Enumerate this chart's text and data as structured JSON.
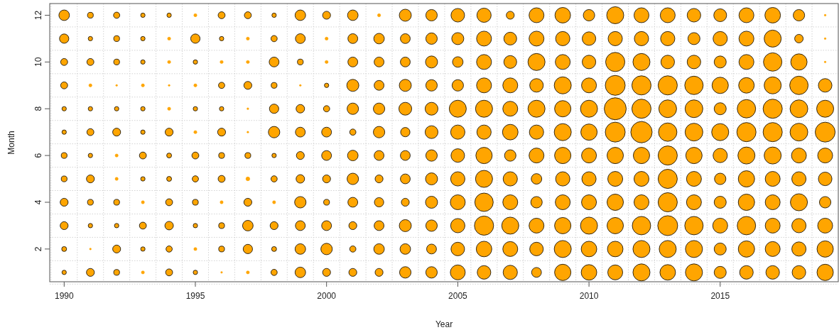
{
  "chart_data": {
    "type": "bubble",
    "xlabel": "Year",
    "ylabel": "Month",
    "xlim": [
      1989.45,
      2019.5
    ],
    "ylim": [
      0.6,
      12.5
    ],
    "xticks": [
      1990,
      1995,
      2000,
      2005,
      2010,
      2015
    ],
    "yticks": [
      2,
      4,
      6,
      8,
      10,
      12
    ],
    "grid": true,
    "marker": "circle",
    "series": [
      {
        "color": "#ffa500",
        "x": [
          1990,
          1990,
          1990,
          1990,
          1990,
          1990,
          1990,
          1990,
          1990,
          1990,
          1990,
          1990,
          1991,
          1991,
          1991,
          1991,
          1991,
          1991,
          1991,
          1991,
          1991,
          1991,
          1991,
          1991,
          1992,
          1992,
          1992,
          1992,
          1992,
          1992,
          1992,
          1992,
          1992,
          1992,
          1992,
          1992,
          1993,
          1993,
          1993,
          1993,
          1993,
          1993,
          1993,
          1993,
          1993,
          1993,
          1993,
          1993,
          1994,
          1994,
          1994,
          1994,
          1994,
          1994,
          1994,
          1994,
          1994,
          1994,
          1994,
          1994,
          1995,
          1995,
          1995,
          1995,
          1995,
          1995,
          1995,
          1995,
          1995,
          1995,
          1995,
          1995,
          1996,
          1996,
          1996,
          1996,
          1996,
          1996,
          1996,
          1996,
          1996,
          1996,
          1996,
          1996,
          1997,
          1997,
          1997,
          1997,
          1997,
          1997,
          1997,
          1997,
          1997,
          1997,
          1997,
          1997,
          1998,
          1998,
          1998,
          1998,
          1998,
          1998,
          1998,
          1998,
          1998,
          1998,
          1998,
          1998,
          1999,
          1999,
          1999,
          1999,
          1999,
          1999,
          1999,
          1999,
          1999,
          1999,
          1999,
          1999,
          2000,
          2000,
          2000,
          2000,
          2000,
          2000,
          2000,
          2000,
          2000,
          2000,
          2000,
          2000,
          2001,
          2001,
          2001,
          2001,
          2001,
          2001,
          2001,
          2001,
          2001,
          2001,
          2001,
          2001,
          2002,
          2002,
          2002,
          2002,
          2002,
          2002,
          2002,
          2002,
          2002,
          2002,
          2002,
          2002,
          2003,
          2003,
          2003,
          2003,
          2003,
          2003,
          2003,
          2003,
          2003,
          2003,
          2003,
          2003,
          2004,
          2004,
          2004,
          2004,
          2004,
          2004,
          2004,
          2004,
          2004,
          2004,
          2004,
          2004,
          2005,
          2005,
          2005,
          2005,
          2005,
          2005,
          2005,
          2005,
          2005,
          2005,
          2005,
          2005,
          2006,
          2006,
          2006,
          2006,
          2006,
          2006,
          2006,
          2006,
          2006,
          2006,
          2006,
          2006,
          2007,
          2007,
          2007,
          2007,
          2007,
          2007,
          2007,
          2007,
          2007,
          2007,
          2007,
          2007,
          2008,
          2008,
          2008,
          2008,
          2008,
          2008,
          2008,
          2008,
          2008,
          2008,
          2008,
          2008,
          2009,
          2009,
          2009,
          2009,
          2009,
          2009,
          2009,
          2009,
          2009,
          2009,
          2009,
          2009,
          2010,
          2010,
          2010,
          2010,
          2010,
          2010,
          2010,
          2010,
          2010,
          2010,
          2010,
          2010,
          2011,
          2011,
          2011,
          2011,
          2011,
          2011,
          2011,
          2011,
          2011,
          2011,
          2011,
          2011,
          2012,
          2012,
          2012,
          2012,
          2012,
          2012,
          2012,
          2012,
          2012,
          2012,
          2012,
          2012,
          2013,
          2013,
          2013,
          2013,
          2013,
          2013,
          2013,
          2013,
          2013,
          2013,
          2013,
          2013,
          2014,
          2014,
          2014,
          2014,
          2014,
          2014,
          2014,
          2014,
          2014,
          2014,
          2014,
          2014,
          2015,
          2015,
          2015,
          2015,
          2015,
          2015,
          2015,
          2015,
          2015,
          2015,
          2015,
          2015,
          2016,
          2016,
          2016,
          2016,
          2016,
          2016,
          2016,
          2016,
          2016,
          2016,
          2016,
          2016,
          2017,
          2017,
          2017,
          2017,
          2017,
          2017,
          2017,
          2017,
          2017,
          2017,
          2017,
          2017,
          2018,
          2018,
          2018,
          2018,
          2018,
          2018,
          2018,
          2018,
          2018,
          2018,
          2018,
          2018,
          2019,
          2019,
          2019,
          2019,
          2019,
          2019,
          2019,
          2019,
          2019,
          2019,
          2019,
          2019
        ],
        "values": [
          1,
          2,
          3,
          4,
          5,
          6,
          7,
          8,
          9,
          10,
          11,
          12,
          1,
          2,
          3,
          4,
          5,
          6,
          7,
          8,
          9,
          10,
          11,
          12,
          1,
          2,
          3,
          4,
          5,
          6,
          7,
          8,
          9,
          10,
          11,
          12,
          1,
          2,
          3,
          4,
          5,
          6,
          7,
          8,
          9,
          10,
          11,
          12,
          1,
          2,
          3,
          4,
          5,
          6,
          7,
          8,
          9,
          10,
          11,
          12,
          1,
          2,
          3,
          4,
          5,
          6,
          7,
          8,
          9,
          10,
          11,
          12,
          1,
          2,
          3,
          4,
          5,
          6,
          7,
          8,
          9,
          10,
          11,
          12,
          1,
          2,
          3,
          4,
          5,
          6,
          7,
          8,
          9,
          10,
          11,
          12,
          1,
          2,
          3,
          4,
          5,
          6,
          7,
          8,
          9,
          10,
          11,
          12,
          1,
          2,
          3,
          4,
          5,
          6,
          7,
          8,
          9,
          10,
          11,
          12,
          1,
          2,
          3,
          4,
          5,
          6,
          7,
          8,
          9,
          10,
          11,
          12,
          1,
          2,
          3,
          4,
          5,
          6,
          7,
          8,
          9,
          10,
          11,
          12,
          1,
          2,
          3,
          4,
          5,
          6,
          7,
          8,
          9,
          10,
          11,
          12,
          1,
          2,
          3,
          4,
          5,
          6,
          7,
          8,
          9,
          10,
          11,
          12,
          1,
          2,
          3,
          4,
          5,
          6,
          7,
          8,
          9,
          10,
          11,
          12,
          1,
          2,
          3,
          4,
          5,
          6,
          7,
          8,
          9,
          10,
          11,
          12,
          1,
          2,
          3,
          4,
          5,
          6,
          7,
          8,
          9,
          10,
          11,
          12,
          1,
          2,
          3,
          4,
          5,
          6,
          7,
          8,
          9,
          10,
          11,
          12,
          1,
          2,
          3,
          4,
          5,
          6,
          7,
          8,
          9,
          10,
          11,
          12,
          1,
          2,
          3,
          4,
          5,
          6,
          7,
          8,
          9,
          10,
          11,
          12,
          1,
          2,
          3,
          4,
          5,
          6,
          7,
          8,
          9,
          10,
          11,
          12,
          1,
          2,
          3,
          4,
          5,
          6,
          7,
          8,
          9,
          10,
          11,
          12,
          1,
          2,
          3,
          4,
          5,
          6,
          7,
          8,
          9,
          10,
          11,
          12,
          1,
          2,
          3,
          4,
          5,
          6,
          7,
          8,
          9,
          10,
          11,
          12,
          1,
          2,
          3,
          4,
          5,
          6,
          7,
          8,
          9,
          10,
          11,
          12,
          1,
          2,
          3,
          4,
          5,
          6,
          7,
          8,
          9,
          10,
          11,
          12,
          1,
          2,
          3,
          4,
          5,
          6,
          7,
          8,
          9,
          10,
          11,
          12,
          1,
          2,
          3,
          4,
          5,
          6,
          7,
          8,
          9,
          10,
          11,
          12,
          1,
          2,
          3,
          4,
          5,
          6,
          7,
          8,
          9,
          10,
          11,
          12,
          1,
          2,
          3,
          4,
          5,
          6,
          7,
          8,
          9,
          10,
          11,
          12
        ],
        "sizes": [
          0.04,
          0.05,
          0.13,
          0.13,
          0.07,
          0.07,
          0.04,
          0.04,
          0.1,
          0.1,
          0.18,
          0.23,
          0.13,
          0.004,
          0.04,
          0.07,
          0.13,
          0.04,
          0.1,
          0.04,
          0.02,
          0.1,
          0.04,
          0.07,
          0.07,
          0.13,
          0.04,
          0.07,
          0.02,
          0.02,
          0.13,
          0.04,
          0.004,
          0.07,
          0.07,
          0.08,
          0.02,
          0.04,
          0.1,
          0.02,
          0.04,
          0.1,
          0.04,
          0.04,
          0.02,
          0.04,
          0.04,
          0.04,
          0.1,
          0.08,
          0.15,
          0.1,
          0.05,
          0.05,
          0.13,
          0.02,
          0.004,
          0.02,
          0.02,
          0.04,
          0.04,
          0.02,
          0.04,
          0.07,
          0.08,
          0.1,
          0.02,
          0.04,
          0.02,
          0.04,
          0.18,
          0.02,
          0.004,
          0.07,
          0.07,
          0.02,
          0.1,
          0.07,
          0.13,
          0.04,
          0.08,
          0.02,
          0.04,
          0.1,
          0.02,
          0.18,
          0.23,
          0.13,
          0.03,
          0.07,
          0.004,
          0.004,
          0.13,
          0.02,
          0.02,
          0.1,
          0.08,
          0.05,
          0.13,
          0.02,
          0.08,
          0.04,
          0.27,
          0.18,
          0.07,
          0.2,
          0.08,
          0.04,
          0.23,
          0.23,
          0.2,
          0.27,
          0.15,
          0.13,
          0.2,
          0.15,
          0.004,
          0.07,
          0.2,
          0.23,
          0.13,
          0.27,
          0.2,
          0.07,
          0.13,
          0.2,
          0.2,
          0.08,
          0.04,
          0.02,
          0.02,
          0.13,
          0.13,
          0.08,
          0.13,
          0.2,
          0.27,
          0.23,
          0.08,
          0.27,
          0.3,
          0.2,
          0.2,
          0.23,
          0.13,
          0.23,
          0.2,
          0.18,
          0.13,
          0.2,
          0.27,
          0.27,
          0.2,
          0.2,
          0.23,
          0.02,
          0.27,
          0.23,
          0.3,
          0.13,
          0.2,
          0.2,
          0.18,
          0.34,
          0.3,
          0.2,
          0.2,
          0.3,
          0.27,
          0.2,
          0.27,
          0.3,
          0.3,
          0.27,
          0.34,
          0.34,
          0.27,
          0.3,
          0.27,
          0.27,
          0.46,
          0.38,
          0.42,
          0.46,
          0.42,
          0.38,
          0.42,
          0.6,
          0.27,
          0.23,
          0.3,
          0.38,
          0.38,
          0.5,
          0.76,
          0.7,
          0.6,
          0.55,
          0.42,
          0.6,
          0.46,
          0.46,
          0.46,
          0.42,
          0.42,
          0.46,
          0.6,
          0.46,
          0.42,
          0.27,
          0.5,
          0.46,
          0.46,
          0.34,
          0.34,
          0.13,
          0.2,
          0.38,
          0.46,
          0.27,
          0.23,
          0.46,
          0.42,
          0.6,
          0.38,
          0.6,
          0.46,
          0.46,
          0.55,
          0.6,
          0.55,
          0.46,
          0.42,
          0.55,
          0.6,
          0.55,
          0.6,
          0.46,
          0.42,
          0.5,
          0.5,
          0.5,
          0.6,
          0.46,
          0.42,
          0.46,
          0.55,
          0.6,
          0.46,
          0.38,
          0.38,
          0.27,
          0.46,
          0.5,
          0.55,
          0.55,
          0.46,
          0.55,
          0.82,
          1,
          0.82,
          0.76,
          0.42,
          0.6,
          0.6,
          0.6,
          0.7,
          0.46,
          0.46,
          0.55,
          0.94,
          0.76,
          0.76,
          0.6,
          0.42,
          0.46,
          0.5,
          0.6,
          0.82,
          0.76,
          0.76,
          0.76,
          0.7,
          0.65,
          0.76,
          0.38,
          0.42,
          0.46,
          0.6,
          0.6,
          0.7,
          0.46,
          0.46,
          0.55,
          0.65,
          0.65,
          0.7,
          0.38,
          0.3,
          0.38,
          0.3,
          0.3,
          0.46,
          0.3,
          0.27,
          0.42,
          0.6,
          0.3,
          0.55,
          0.3,
          0.42,
          0.34,
          0.38,
          0.55,
          0.7,
          0.55,
          0.55,
          0.6,
          0.76,
          0.7,
          0.5,
          0.46,
          0.46,
          0.46,
          0.38,
          0.46,
          0.46,
          0.46,
          0.46,
          0.6,
          0.76,
          0.76,
          0.6,
          0.7,
          0.6,
          0.5,
          0.38,
          0.42,
          0.42,
          0.6,
          0.42,
          0.46,
          0.65,
          0.65,
          0.7,
          0.55,
          0.15,
          0.27,
          0.55,
          0.55,
          0.46,
          0.27,
          0.38,
          0.46,
          0.82,
          0.6,
          0.38,
          0.004,
          0.004,
          0.004
        ]
      }
    ]
  }
}
